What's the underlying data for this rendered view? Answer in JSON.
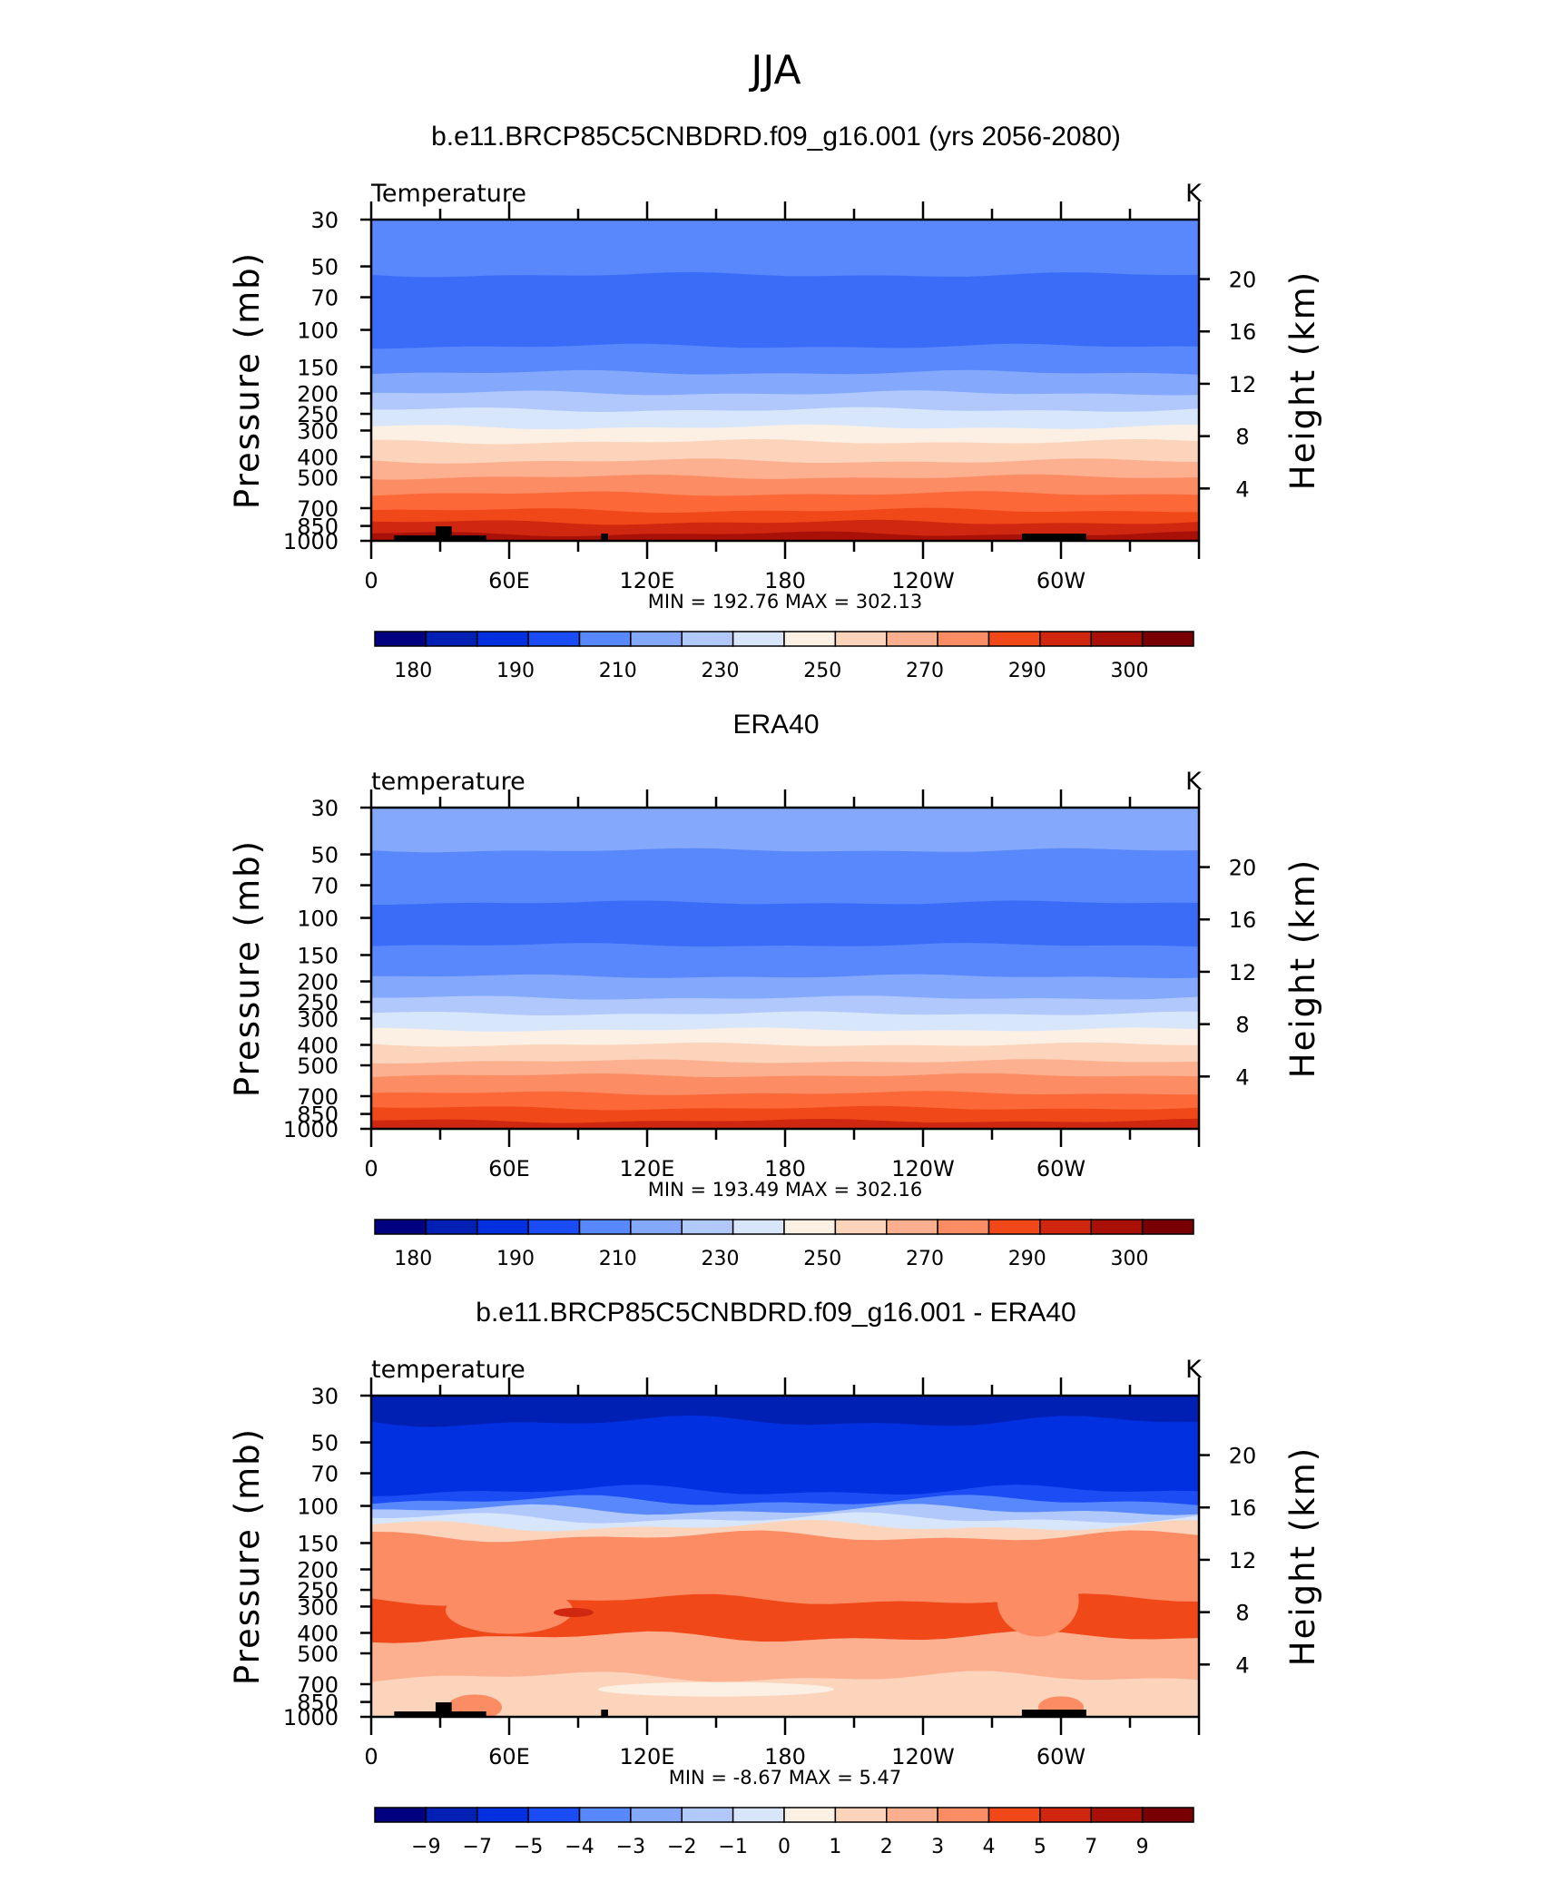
{
  "figure": {
    "season_title": "JJA"
  },
  "palette_cold_to_warm": [
    "#000080",
    "#0020b4",
    "#0030e0",
    "#1c4cf4",
    "#3a6cf8",
    "#5888fc",
    "#84a8fc",
    "#b0c8fc",
    "#d8e6fc",
    "#fcf0e4",
    "#fcd4bc",
    "#fcb090",
    "#fc8c64",
    "#fc6838",
    "#f04818",
    "#d02810",
    "#a81008",
    "#780000"
  ],
  "panels": [
    {
      "title": "b.e11.BRCP85C5CNBDRD.f09_g16.001 (yrs 2056-2080)",
      "left_label": "Temperature",
      "right_label": "K",
      "ylabel_left": "Pressure (mb)",
      "ylabel_right": "Height (km)",
      "stats": "MIN =  192.76   MAX =  302.13",
      "variant": "model",
      "colorbar_labels": [
        "180",
        "190",
        "210",
        "230",
        "250",
        "270",
        "290",
        "300"
      ]
    },
    {
      "title": "ERA40",
      "left_label": "temperature",
      "right_label": "K",
      "ylabel_left": "Pressure (mb)",
      "ylabel_right": "Height (km)",
      "stats": "MIN =  193.49   MAX =  302.16",
      "variant": "obs",
      "colorbar_labels": [
        "180",
        "190",
        "210",
        "230",
        "250",
        "270",
        "290",
        "300"
      ]
    },
    {
      "title": "b.e11.BRCP85C5CNBDRD.f09_g16.001 - ERA40",
      "left_label": "temperature",
      "right_label": "K",
      "ylabel_left": "Pressure (mb)",
      "ylabel_right": "Height (km)",
      "stats": "MIN =   -8.67   MAX =     5.47",
      "variant": "diff",
      "colorbar_labels": [
        "-9",
        "-7",
        "-5",
        "-4",
        "-3",
        "-2",
        "-1",
        "0",
        "1",
        "2",
        "3",
        "4",
        "5",
        "7",
        "9"
      ]
    }
  ],
  "chart_data": [
    {
      "type": "heatmap",
      "title": "b.e11.BRCP85C5CNBDRD.f09_g16.001 (yrs 2056-2080)",
      "xlabel": "",
      "ylabel": "Pressure (mb)",
      "ylabel_right": "Height (km)",
      "x_ticks": [
        "0",
        "60E",
        "120E",
        "180",
        "120W",
        "60W"
      ],
      "x_tick_degrees": [
        0,
        60,
        120,
        180,
        240,
        300
      ],
      "xlim": [
        0,
        360
      ],
      "y_ticks": [
        30,
        50,
        70,
        100,
        150,
        200,
        250,
        300,
        400,
        500,
        700,
        850,
        1000
      ],
      "ylim": [
        1000,
        30
      ],
      "y_scale": "log",
      "right_ticks_km": [
        4,
        8,
        12,
        16,
        20
      ],
      "levels": [
        180,
        185,
        190,
        200,
        210,
        220,
        230,
        240,
        250,
        260,
        270,
        280,
        290,
        295,
        300
      ],
      "bands_pressure": [
        {
          "top": 30,
          "bottom": 55,
          "color_index": 5
        },
        {
          "top": 55,
          "bottom": 120,
          "color_index": 4
        },
        {
          "top": 120,
          "bottom": 160,
          "color_index": 5
        },
        {
          "top": 160,
          "bottom": 200,
          "color_index": 6
        },
        {
          "top": 200,
          "bottom": 240,
          "color_index": 7
        },
        {
          "top": 240,
          "bottom": 290,
          "color_index": 8
        },
        {
          "top": 290,
          "bottom": 340,
          "color_index": 9
        },
        {
          "top": 340,
          "bottom": 420,
          "color_index": 10
        },
        {
          "top": 420,
          "bottom": 500,
          "color_index": 11
        },
        {
          "top": 500,
          "bottom": 600,
          "color_index": 12
        },
        {
          "top": 600,
          "bottom": 720,
          "color_index": 13
        },
        {
          "top": 720,
          "bottom": 820,
          "color_index": 14
        },
        {
          "top": 820,
          "bottom": 930,
          "color_index": 15
        },
        {
          "top": 930,
          "bottom": 1000,
          "color_index": 16
        }
      ],
      "min": 192.76,
      "max": 302.13,
      "units": "K"
    },
    {
      "type": "heatmap",
      "title": "ERA40",
      "xlabel": "",
      "ylabel": "Pressure (mb)",
      "ylabel_right": "Height (km)",
      "x_ticks": [
        "0",
        "60E",
        "120E",
        "180",
        "120W",
        "60W"
      ],
      "x_tick_degrees": [
        0,
        60,
        120,
        180,
        240,
        300
      ],
      "xlim": [
        0,
        360
      ],
      "y_ticks": [
        30,
        50,
        70,
        100,
        150,
        200,
        250,
        300,
        400,
        500,
        700,
        850,
        1000
      ],
      "ylim": [
        1000,
        30
      ],
      "y_scale": "log",
      "right_ticks_km": [
        4,
        8,
        12,
        16,
        20
      ],
      "levels": [
        180,
        185,
        190,
        200,
        210,
        220,
        230,
        240,
        250,
        260,
        270,
        280,
        290,
        295,
        300
      ],
      "bands_pressure": [
        {
          "top": 30,
          "bottom": 48,
          "color_index": 6
        },
        {
          "top": 48,
          "bottom": 85,
          "color_index": 5
        },
        {
          "top": 85,
          "bottom": 135,
          "color_index": 4
        },
        {
          "top": 135,
          "bottom": 190,
          "color_index": 5
        },
        {
          "top": 190,
          "bottom": 240,
          "color_index": 6
        },
        {
          "top": 240,
          "bottom": 285,
          "color_index": 7
        },
        {
          "top": 285,
          "bottom": 340,
          "color_index": 8
        },
        {
          "top": 340,
          "bottom": 400,
          "color_index": 9
        },
        {
          "top": 400,
          "bottom": 480,
          "color_index": 10
        },
        {
          "top": 480,
          "bottom": 560,
          "color_index": 11
        },
        {
          "top": 560,
          "bottom": 680,
          "color_index": 12
        },
        {
          "top": 680,
          "bottom": 800,
          "color_index": 13
        },
        {
          "top": 800,
          "bottom": 920,
          "color_index": 14
        },
        {
          "top": 920,
          "bottom": 1000,
          "color_index": 15
        }
      ],
      "min": 193.49,
      "max": 302.16,
      "units": "K"
    },
    {
      "type": "heatmap",
      "title": "b.e11.BRCP85C5CNBDRD.f09_g16.001 - ERA40",
      "xlabel": "",
      "ylabel": "Pressure (mb)",
      "ylabel_right": "Height (km)",
      "x_ticks": [
        "0",
        "60E",
        "120E",
        "180",
        "120W",
        "60W"
      ],
      "x_tick_degrees": [
        0,
        60,
        120,
        180,
        240,
        300
      ],
      "xlim": [
        0,
        360
      ],
      "y_ticks": [
        30,
        50,
        70,
        100,
        150,
        200,
        250,
        300,
        400,
        500,
        700,
        850,
        1000
      ],
      "ylim": [
        1000,
        30
      ],
      "y_scale": "log",
      "right_ticks_km": [
        4,
        8,
        12,
        16,
        20
      ],
      "levels": [
        -9,
        -7,
        -5,
        -4,
        -3,
        -2,
        -1,
        0,
        1,
        2,
        3,
        4,
        5,
        7,
        9
      ],
      "bands_pressure": [
        {
          "top": 30,
          "bottom": 40,
          "color_index": 1
        },
        {
          "top": 40,
          "bottom": 85,
          "color_index": 2
        },
        {
          "top": 85,
          "bottom": 95,
          "color_index": 3
        },
        {
          "top": 95,
          "bottom": 105,
          "color_index": 5
        },
        {
          "top": 105,
          "bottom": 115,
          "color_index": 7
        },
        {
          "top": 115,
          "bottom": 125,
          "color_index": 8
        },
        {
          "top": 125,
          "bottom": 140,
          "color_index": 10
        },
        {
          "top": 140,
          "bottom": 280,
          "color_index": 12
        },
        {
          "top": 280,
          "bottom": 420,
          "color_index": 14
        },
        {
          "top": 420,
          "bottom": 650,
          "color_index": 11
        },
        {
          "top": 650,
          "bottom": 1000,
          "color_index": 10
        }
      ],
      "min": -8.67,
      "max": 5.47,
      "units": "K"
    }
  ]
}
